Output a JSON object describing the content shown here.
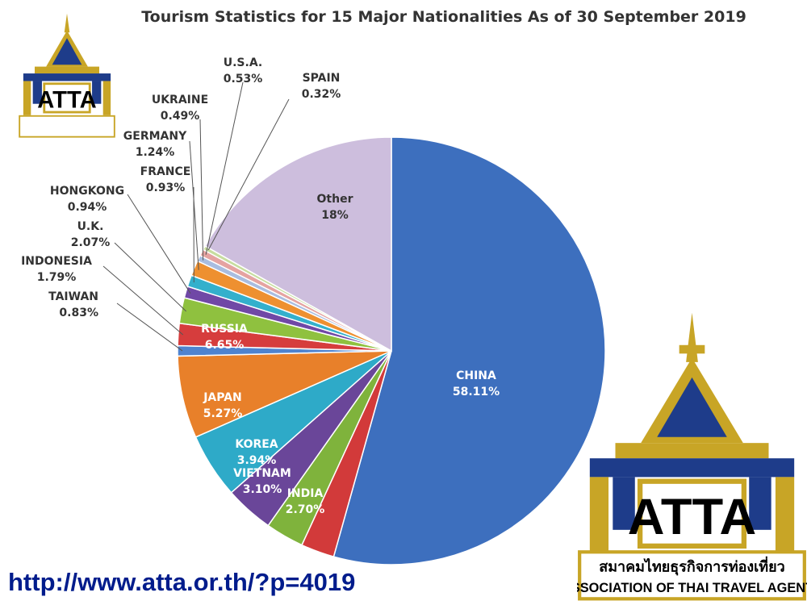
{
  "chart_data": {
    "type": "pie",
    "title": "Tourism Statistics for 15 Major Nationalities As of 30 September 2019",
    "categories": [
      "CHINA",
      "INDIA",
      "VIETNAM",
      "KOREA",
      "JAPAN",
      "RUSSIA",
      "TAIWAN",
      "INDONESIA",
      "U.K.",
      "HONGKONG",
      "FRANCE",
      "GERMANY",
      "UKRAINE",
      "U.S.A.",
      "SPAIN",
      "Other"
    ],
    "values": [
      58.11,
      2.7,
      3.1,
      3.94,
      5.27,
      6.65,
      0.83,
      1.79,
      2.07,
      0.94,
      0.93,
      1.24,
      0.49,
      0.53,
      0.32,
      18
    ],
    "value_labels": [
      "58.11%",
      "2.70%",
      "3.10%",
      "3.94%",
      "5.27%",
      "6.65%",
      "0.83%",
      "1.79%",
      "2.07%",
      "0.94%",
      "0.93%",
      "1.24%",
      "0.49%",
      "0.53%",
      "0.32%",
      "18%"
    ],
    "colors": [
      "#3d6fbe",
      "#d23a3a",
      "#7fb33c",
      "#6a4699",
      "#2eaac8",
      "#e8802a",
      "#4f83cf",
      "#d63d3d",
      "#8fc13f",
      "#7048a6",
      "#33b0cc",
      "#ee9030",
      "#a9bde0",
      "#e5a3a1",
      "#c7dd9f",
      "#cdbedd"
    ],
    "legend": "none"
  },
  "footer": {
    "url": "http://www.atta.or.th/?p=4019"
  },
  "logo": {
    "name": "ATTA",
    "thai_text": "สมาคมไทยธุรกิจการท่องเที่ยว",
    "english_text": "ASSOCIATION OF THAI TRAVEL AGENTS"
  }
}
